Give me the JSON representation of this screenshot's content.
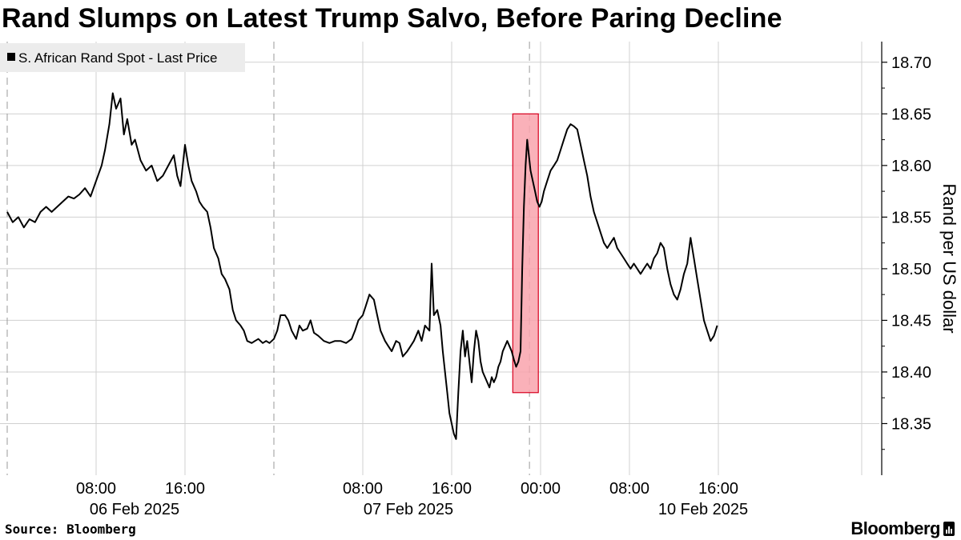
{
  "title": "Rand Slumps on Latest Trump Salvo, Before Paring Decline",
  "source": "Source: Bloomberg",
  "brand": "Bloomberg",
  "brand_icon": "bloomberg-terminal-icon",
  "colors": {
    "line": "#000000",
    "highlight_fill": "#f9a3ad",
    "highlight_stroke": "#d8001e",
    "grid": "#d0d0d0",
    "legend_bg": "#ececec"
  },
  "chart_data": {
    "type": "line",
    "title": "Rand Slumps on Latest Trump Salvo, Before Paring Decline",
    "ylabel": "Rand per US dollar",
    "xlabel": "",
    "ylim": [
      18.3,
      18.72
    ],
    "y_ticks": [
      "18.35",
      "18.40",
      "18.45",
      "18.50",
      "18.55",
      "18.60",
      "18.65",
      "18.70"
    ],
    "y_tick_values": [
      18.35,
      18.4,
      18.45,
      18.5,
      18.55,
      18.6,
      18.65,
      18.7
    ],
    "grid": true,
    "legend": {
      "placement": "top-left",
      "entries": [
        "S. African Rand Spot - Last Price"
      ]
    },
    "x_time_ticks": [
      {
        "time": "08:00",
        "date": "06 Feb 2025",
        "hour": 8
      },
      {
        "time": "16:00",
        "date": "",
        "hour": 16
      },
      {
        "time": "08:00",
        "date": "07 Feb 2025",
        "hour": 32
      },
      {
        "time": "16:00",
        "date": "",
        "hour": 40
      },
      {
        "time": "00:00",
        "date": "",
        "hour": 48
      },
      {
        "time": "08:00",
        "date": "10 Feb 2025",
        "hour": 56
      },
      {
        "time": "16:00",
        "date": "",
        "hour": 64
      }
    ],
    "day_separators_hours": [
      0,
      24,
      47
    ],
    "x_range_hours": [
      0,
      72
    ],
    "highlight": {
      "x_from_hours": 45.5,
      "x_to_hours": 47.8,
      "y_from": 18.38,
      "y_to": 18.65
    },
    "series": [
      {
        "name": "S. African Rand Spot - Last Price",
        "points": [
          [
            0,
            18.555
          ],
          [
            0.5,
            18.545
          ],
          [
            1,
            18.55
          ],
          [
            1.5,
            18.54
          ],
          [
            2,
            18.548
          ],
          [
            2.5,
            18.545
          ],
          [
            3,
            18.555
          ],
          [
            3.5,
            18.56
          ],
          [
            4,
            18.555
          ],
          [
            4.5,
            18.56
          ],
          [
            5,
            18.565
          ],
          [
            5.5,
            18.57
          ],
          [
            6,
            18.568
          ],
          [
            6.5,
            18.572
          ],
          [
            7,
            18.578
          ],
          [
            7.5,
            18.57
          ],
          [
            8,
            18.585
          ],
          [
            8.5,
            18.6
          ],
          [
            8.8,
            18.615
          ],
          [
            9.2,
            18.64
          ],
          [
            9.5,
            18.67
          ],
          [
            9.8,
            18.655
          ],
          [
            10.2,
            18.665
          ],
          [
            10.5,
            18.63
          ],
          [
            10.8,
            18.645
          ],
          [
            11.2,
            18.62
          ],
          [
            11.5,
            18.625
          ],
          [
            12,
            18.605
          ],
          [
            12.5,
            18.595
          ],
          [
            13,
            18.6
          ],
          [
            13.5,
            18.585
          ],
          [
            14,
            18.59
          ],
          [
            14.5,
            18.6
          ],
          [
            15,
            18.61
          ],
          [
            15.3,
            18.59
          ],
          [
            15.6,
            18.58
          ],
          [
            16,
            18.62
          ],
          [
            16.3,
            18.6
          ],
          [
            16.6,
            18.585
          ],
          [
            17,
            18.575
          ],
          [
            17.3,
            18.565
          ],
          [
            17.6,
            18.56
          ],
          [
            18,
            18.555
          ],
          [
            18.3,
            18.54
          ],
          [
            18.6,
            18.52
          ],
          [
            19,
            18.51
          ],
          [
            19.3,
            18.495
          ],
          [
            19.6,
            18.49
          ],
          [
            20,
            18.48
          ],
          [
            20.3,
            18.46
          ],
          [
            20.6,
            18.45
          ],
          [
            21,
            18.445
          ],
          [
            21.3,
            18.44
          ],
          [
            21.6,
            18.43
          ],
          [
            22,
            18.428
          ],
          [
            22.3,
            18.43
          ],
          [
            22.6,
            18.432
          ],
          [
            23,
            18.428
          ],
          [
            23.3,
            18.43
          ],
          [
            23.6,
            18.428
          ],
          [
            24,
            18.432
          ],
          [
            24.3,
            18.44
          ],
          [
            24.6,
            18.455
          ],
          [
            25,
            18.455
          ],
          [
            25.3,
            18.45
          ],
          [
            25.6,
            18.44
          ],
          [
            26,
            18.432
          ],
          [
            26.3,
            18.445
          ],
          [
            26.6,
            18.44
          ],
          [
            27,
            18.442
          ],
          [
            27.3,
            18.45
          ],
          [
            27.6,
            18.438
          ],
          [
            28,
            18.435
          ],
          [
            28.5,
            18.43
          ],
          [
            29,
            18.428
          ],
          [
            29.5,
            18.43
          ],
          [
            30,
            18.43
          ],
          [
            30.5,
            18.428
          ],
          [
            31,
            18.432
          ],
          [
            31.3,
            18.44
          ],
          [
            31.6,
            18.45
          ],
          [
            32,
            18.455
          ],
          [
            32.3,
            18.465
          ],
          [
            32.6,
            18.475
          ],
          [
            33,
            18.47
          ],
          [
            33.3,
            18.455
          ],
          [
            33.6,
            18.44
          ],
          [
            34,
            18.43
          ],
          [
            34.3,
            18.425
          ],
          [
            34.6,
            18.42
          ],
          [
            35,
            18.43
          ],
          [
            35.3,
            18.428
          ],
          [
            35.6,
            18.415
          ],
          [
            36,
            18.42
          ],
          [
            36.3,
            18.425
          ],
          [
            36.6,
            18.43
          ],
          [
            37,
            18.44
          ],
          [
            37.3,
            18.43
          ],
          [
            37.6,
            18.445
          ],
          [
            38,
            18.44
          ],
          [
            38.2,
            18.505
          ],
          [
            38.4,
            18.455
          ],
          [
            38.7,
            18.46
          ],
          [
            39,
            18.445
          ],
          [
            39.2,
            18.42
          ],
          [
            39.4,
            18.4
          ],
          [
            39.6,
            18.38
          ],
          [
            39.8,
            18.36
          ],
          [
            40,
            18.35
          ],
          [
            40.2,
            18.34
          ],
          [
            40.4,
            18.335
          ],
          [
            40.6,
            18.38
          ],
          [
            40.8,
            18.42
          ],
          [
            41,
            18.44
          ],
          [
            41.2,
            18.415
          ],
          [
            41.4,
            18.43
          ],
          [
            41.6,
            18.41
          ],
          [
            41.8,
            18.39
          ],
          [
            42,
            18.42
          ],
          [
            42.2,
            18.44
          ],
          [
            42.4,
            18.43
          ],
          [
            42.6,
            18.41
          ],
          [
            42.8,
            18.4
          ],
          [
            43,
            18.395
          ],
          [
            43.2,
            18.39
          ],
          [
            43.4,
            18.385
          ],
          [
            43.6,
            18.395
          ],
          [
            43.8,
            18.39
          ],
          [
            44,
            18.395
          ],
          [
            44.2,
            18.405
          ],
          [
            44.4,
            18.41
          ],
          [
            44.6,
            18.42
          ],
          [
            44.8,
            18.425
          ],
          [
            45,
            18.43
          ],
          [
            45.2,
            18.425
          ],
          [
            45.4,
            18.42
          ],
          [
            45.6,
            18.412
          ],
          [
            45.8,
            18.405
          ],
          [
            46,
            18.41
          ],
          [
            46.2,
            18.42
          ],
          [
            46.35,
            18.5
          ],
          [
            46.5,
            18.56
          ],
          [
            46.65,
            18.6
          ],
          [
            46.8,
            18.625
          ],
          [
            46.95,
            18.61
          ],
          [
            47.1,
            18.595
          ],
          [
            47.3,
            18.585
          ],
          [
            47.5,
            18.575
          ],
          [
            47.7,
            18.565
          ],
          [
            47.9,
            18.56
          ],
          [
            48.1,
            18.565
          ],
          [
            48.3,
            18.575
          ],
          [
            48.6,
            18.585
          ],
          [
            48.9,
            18.595
          ],
          [
            49.2,
            18.6
          ],
          [
            49.5,
            18.605
          ],
          [
            49.8,
            18.615
          ],
          [
            50.1,
            18.625
          ],
          [
            50.4,
            18.635
          ],
          [
            50.7,
            18.64
          ],
          [
            51,
            18.638
          ],
          [
            51.3,
            18.635
          ],
          [
            51.6,
            18.62
          ],
          [
            51.9,
            18.605
          ],
          [
            52.2,
            18.59
          ],
          [
            52.5,
            18.57
          ],
          [
            52.8,
            18.555
          ],
          [
            53.1,
            18.545
          ],
          [
            53.4,
            18.535
          ],
          [
            53.7,
            18.525
          ],
          [
            54,
            18.52
          ],
          [
            54.3,
            18.525
          ],
          [
            54.6,
            18.53
          ],
          [
            54.9,
            18.52
          ],
          [
            55.2,
            18.515
          ],
          [
            55.5,
            18.51
          ],
          [
            55.8,
            18.505
          ],
          [
            56.1,
            18.5
          ],
          [
            56.4,
            18.505
          ],
          [
            56.7,
            18.5
          ],
          [
            57,
            18.495
          ],
          [
            57.3,
            18.5
          ],
          [
            57.6,
            18.505
          ],
          [
            57.9,
            18.5
          ],
          [
            58.2,
            18.51
          ],
          [
            58.5,
            18.515
          ],
          [
            58.8,
            18.525
          ],
          [
            59.1,
            18.52
          ],
          [
            59.4,
            18.5
          ],
          [
            59.7,
            18.485
          ],
          [
            60,
            18.475
          ],
          [
            60.3,
            18.47
          ],
          [
            60.6,
            18.48
          ],
          [
            60.9,
            18.495
          ],
          [
            61.2,
            18.505
          ],
          [
            61.5,
            18.53
          ],
          [
            61.8,
            18.51
          ],
          [
            62.1,
            18.49
          ],
          [
            62.4,
            18.47
          ],
          [
            62.7,
            18.45
          ],
          [
            63,
            18.44
          ],
          [
            63.3,
            18.43
          ],
          [
            63.6,
            18.435
          ],
          [
            63.9,
            18.445
          ]
        ]
      }
    ]
  }
}
